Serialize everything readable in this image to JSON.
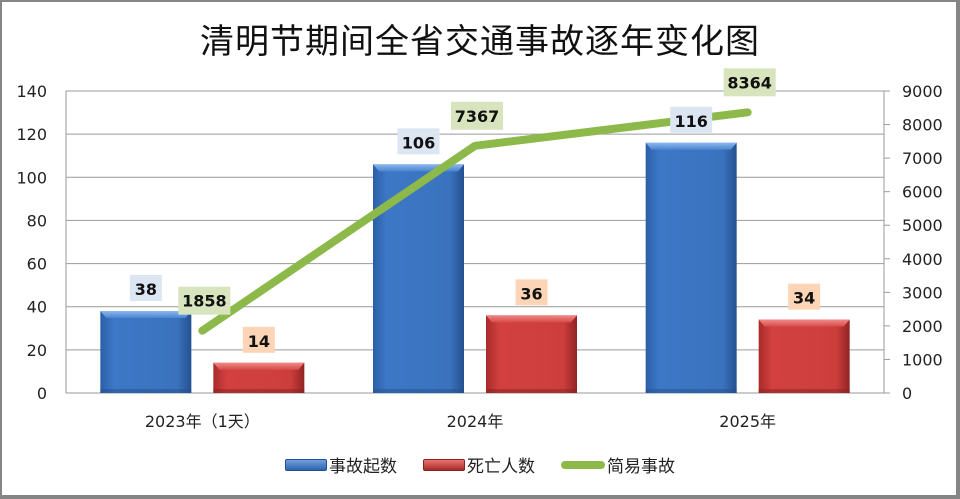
{
  "chart_data": {
    "type": "bar",
    "title": "清明节期间全省交通事故逐年变化图",
    "categories": [
      "2023年（1天）",
      "2024年",
      "2025年"
    ],
    "series": [
      {
        "name": "事故起数",
        "type": "bar",
        "axis": "left",
        "color": "#3b73c0",
        "values": [
          38,
          106,
          116
        ]
      },
      {
        "name": "死亡人数",
        "type": "bar",
        "axis": "left",
        "color": "#c83a3a",
        "values": [
          14,
          36,
          34
        ]
      },
      {
        "name": "简易事故",
        "type": "line",
        "axis": "right",
        "color": "#8db94a",
        "values": [
          1858,
          7367,
          8364
        ]
      }
    ],
    "left_axis": {
      "min": 0,
      "max": 140,
      "step": 20,
      "ticks": [
        "0",
        "20",
        "40",
        "60",
        "80",
        "100",
        "120",
        "140"
      ]
    },
    "right_axis": {
      "min": 0,
      "max": 9000,
      "step": 1000,
      "ticks": [
        "0",
        "1000",
        "2000",
        "3000",
        "4000",
        "5000",
        "6000",
        "7000",
        "8000",
        "9000"
      ]
    },
    "grid": true,
    "legend_position": "bottom",
    "data_labels": true
  },
  "legend": [
    {
      "label": "事故起数",
      "kind": "bar",
      "color": "#3b73c0"
    },
    {
      "label": "死亡人数",
      "kind": "bar",
      "color": "#c83a3a"
    },
    {
      "label": "简易事故",
      "kind": "line",
      "color": "#8db94a"
    }
  ]
}
